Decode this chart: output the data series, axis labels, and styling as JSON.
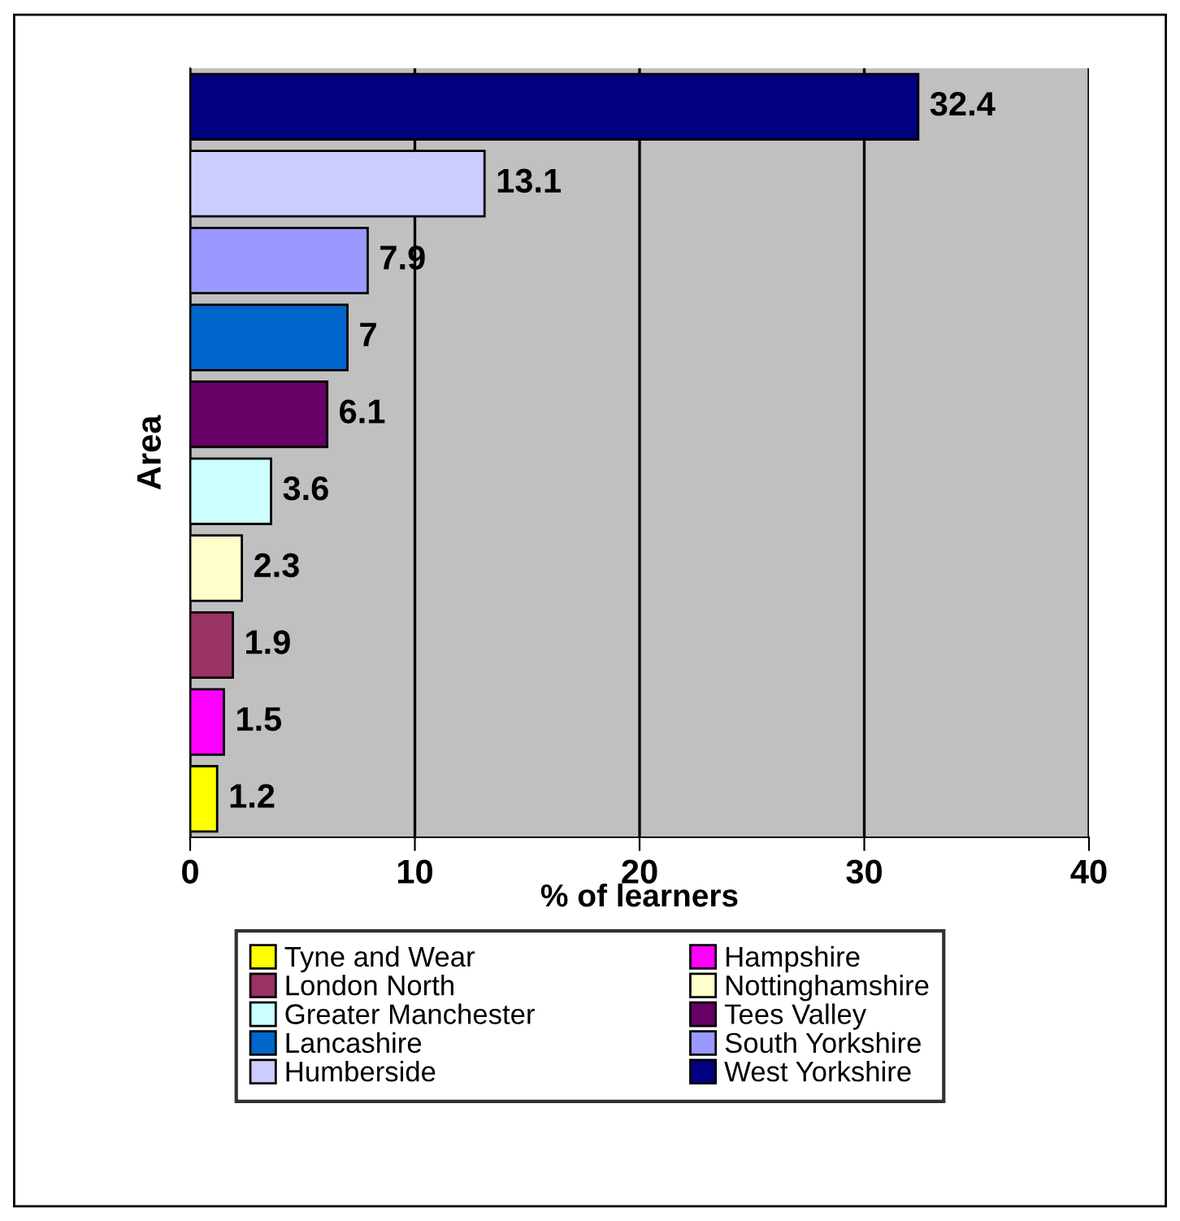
{
  "chart_data": {
    "type": "bar",
    "orientation": "horizontal",
    "xlabel": "% of learners",
    "ylabel": "Area",
    "categories": [
      null,
      null,
      null,
      null,
      null,
      null,
      null,
      null,
      null,
      null
    ],
    "series": [
      {
        "name": "Tyne and Wear",
        "color": "#ffff00",
        "values": [
          null,
          null,
          null,
          null,
          null,
          null,
          null,
          null,
          null,
          1.2
        ]
      },
      {
        "name": "Hampshire",
        "color": "#ff00ff",
        "values": [
          null,
          null,
          null,
          null,
          null,
          null,
          null,
          null,
          1.5,
          null
        ]
      },
      {
        "name": "London North",
        "color": "#993366",
        "values": [
          null,
          null,
          null,
          null,
          null,
          null,
          null,
          1.9,
          null,
          null
        ]
      },
      {
        "name": "Nottinghamshire",
        "color": "#ffffcc",
        "values": [
          null,
          null,
          null,
          null,
          null,
          null,
          2.3,
          null,
          null,
          null
        ]
      },
      {
        "name": "Greater Manchester",
        "color": "#ccffff",
        "values": [
          null,
          null,
          null,
          null,
          null,
          3.6,
          null,
          null,
          null,
          null
        ]
      },
      {
        "name": "Tees Valley",
        "color": "#660066",
        "values": [
          null,
          null,
          null,
          null,
          6.1,
          null,
          null,
          null,
          null,
          null
        ]
      },
      {
        "name": "Lancashire",
        "color": "#0066cc",
        "values": [
          null,
          null,
          null,
          7,
          null,
          null,
          null,
          null,
          null,
          null
        ]
      },
      {
        "name": "South Yorkshire",
        "color": "#9999ff",
        "values": [
          null,
          null,
          7.9,
          null,
          null,
          null,
          null,
          null,
          null,
          null
        ]
      },
      {
        "name": "Humberside",
        "color": "#ccccff",
        "values": [
          null,
          13.1,
          null,
          null,
          null,
          null,
          null,
          null,
          null,
          null
        ]
      },
      {
        "name": "West Yorkshire",
        "color": "#000080",
        "values": [
          32.4,
          null,
          null,
          null,
          null,
          null,
          null,
          null,
          null,
          null
        ]
      }
    ],
    "xlim": [
      0,
      40
    ],
    "xticks": [
      0,
      10,
      20,
      30,
      40
    ],
    "grid": "x",
    "legend": "bottom",
    "data_labels": true,
    "tick_labels": "x"
  }
}
